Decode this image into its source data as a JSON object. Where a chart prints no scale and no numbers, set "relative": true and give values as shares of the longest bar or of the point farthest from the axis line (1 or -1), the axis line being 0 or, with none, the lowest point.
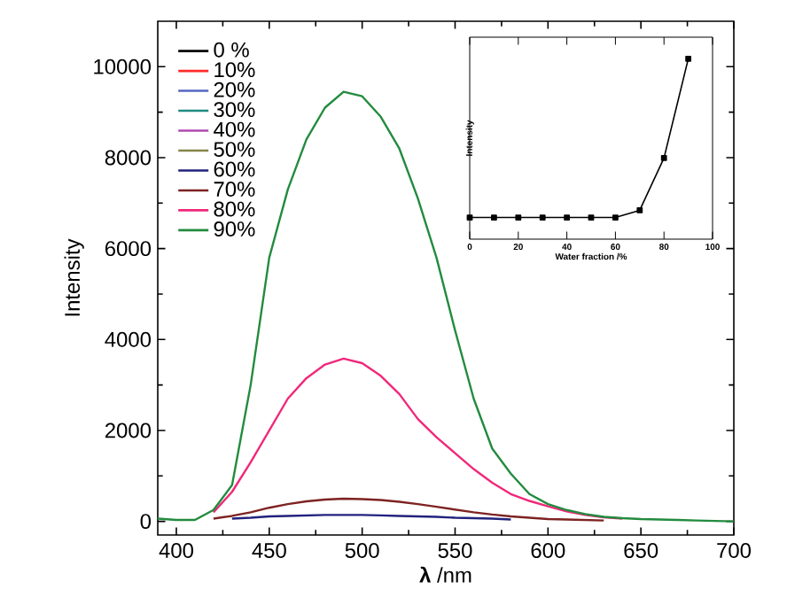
{
  "chart_data": [
    {
      "type": "line",
      "xlabel": "**λ** /nm",
      "ylabel": "Intensity",
      "legend": "top left",
      "x": [
        390,
        400,
        410,
        420,
        430,
        440,
        450,
        460,
        470,
        480,
        490,
        500,
        510,
        520,
        530,
        540,
        550,
        560,
        570,
        580,
        590,
        600,
        610,
        620,
        630,
        640,
        650,
        660,
        670,
        680,
        690,
        700
      ],
      "xlim": [
        390,
        700
      ],
      "ylim": [
        -300,
        11000
      ],
      "xticks": [
        400,
        450,
        500,
        550,
        600,
        650,
        700
      ],
      "yticks": [
        0,
        2000,
        4000,
        6000,
        8000,
        10000
      ],
      "series": [
        {
          "name": "0 %",
          "color": "#000000",
          "values": [
            null,
            null,
            null,
            null,
            null,
            null,
            null,
            null,
            null,
            null,
            null,
            null,
            null,
            null,
            null,
            null,
            null,
            null,
            null,
            null,
            null,
            null,
            null,
            null,
            null,
            null,
            null,
            null,
            null,
            null,
            null,
            null
          ]
        },
        {
          "name": "10%",
          "color": "#ff2a2a",
          "values": [
            null,
            null,
            null,
            null,
            null,
            null,
            null,
            null,
            null,
            null,
            null,
            null,
            null,
            null,
            null,
            null,
            null,
            null,
            null,
            null,
            null,
            null,
            null,
            null,
            null,
            null,
            null,
            null,
            null,
            null,
            null,
            null
          ]
        },
        {
          "name": "20%",
          "color": "#5566c0",
          "values": [
            null,
            null,
            null,
            null,
            null,
            null,
            null,
            null,
            null,
            null,
            null,
            null,
            null,
            null,
            null,
            null,
            null,
            null,
            null,
            null,
            null,
            null,
            null,
            null,
            null,
            null,
            null,
            null,
            null,
            null,
            null,
            null
          ]
        },
        {
          "name": "30%",
          "color": "#1f8a80",
          "values": [
            null,
            null,
            null,
            null,
            null,
            null,
            null,
            null,
            null,
            null,
            null,
            null,
            null,
            null,
            null,
            null,
            null,
            null,
            null,
            null,
            null,
            null,
            null,
            null,
            null,
            null,
            null,
            null,
            null,
            null,
            null,
            null
          ]
        },
        {
          "name": "40%",
          "color": "#b04aae",
          "values": [
            null,
            null,
            null,
            null,
            null,
            null,
            null,
            null,
            null,
            null,
            null,
            null,
            null,
            null,
            null,
            null,
            null,
            null,
            null,
            null,
            null,
            null,
            null,
            null,
            null,
            null,
            null,
            null,
            null,
            null,
            null,
            null
          ]
        },
        {
          "name": "50%",
          "color": "#85854a",
          "values": [
            null,
            null,
            null,
            null,
            null,
            null,
            null,
            null,
            null,
            null,
            null,
            null,
            null,
            null,
            null,
            null,
            null,
            null,
            null,
            null,
            null,
            null,
            null,
            null,
            null,
            null,
            null,
            null,
            null,
            null,
            null,
            null
          ]
        },
        {
          "name": "60%",
          "color": "#22227e",
          "values": [
            null,
            null,
            null,
            null,
            60,
            80,
            110,
            120,
            130,
            140,
            140,
            140,
            130,
            120,
            110,
            100,
            80,
            70,
            60,
            40,
            null,
            null,
            null,
            null,
            null,
            null,
            null,
            null,
            null,
            null,
            null,
            null
          ]
        },
        {
          "name": "70%",
          "color": "#7e2222",
          "values": [
            null,
            null,
            null,
            60,
            120,
            200,
            300,
            380,
            440,
            480,
            500,
            490,
            470,
            430,
            380,
            320,
            260,
            200,
            150,
            110,
            80,
            50,
            40,
            30,
            20,
            null,
            null,
            null,
            null,
            null,
            null,
            null
          ]
        },
        {
          "name": "80%",
          "color": "#f0287a",
          "values": [
            null,
            null,
            null,
            200,
            650,
            1300,
            2000,
            2700,
            3150,
            3450,
            3580,
            3480,
            3200,
            2800,
            2250,
            1850,
            1500,
            1150,
            850,
            600,
            450,
            330,
            220,
            140,
            90,
            60,
            null,
            null,
            null,
            null,
            null,
            null
          ]
        },
        {
          "name": "90%",
          "color": "#228b3e",
          "values": [
            60,
            30,
            30,
            250,
            800,
            3000,
            5800,
            7300,
            8400,
            9100,
            9450,
            9350,
            8900,
            8200,
            7100,
            5800,
            4200,
            2700,
            1600,
            1050,
            600,
            380,
            250,
            160,
            100,
            70,
            50,
            40,
            30,
            20,
            10,
            0
          ]
        }
      ]
    },
    {
      "type": "line",
      "xlabel": "Water fraction /%",
      "ylabel": "Intensity",
      "relative": true,
      "marker": "square",
      "x": [
        0,
        10,
        20,
        30,
        40,
        50,
        60,
        70,
        80,
        90
      ],
      "xlim": [
        0,
        100
      ],
      "xticks": [
        0,
        20,
        40,
        60,
        80,
        100
      ],
      "series": [
        {
          "color": "#000000",
          "values": [
            0.12,
            0.12,
            0.12,
            0.12,
            0.12,
            0.12,
            0.12,
            0.16,
            0.45,
            1
          ]
        }
      ]
    }
  ]
}
